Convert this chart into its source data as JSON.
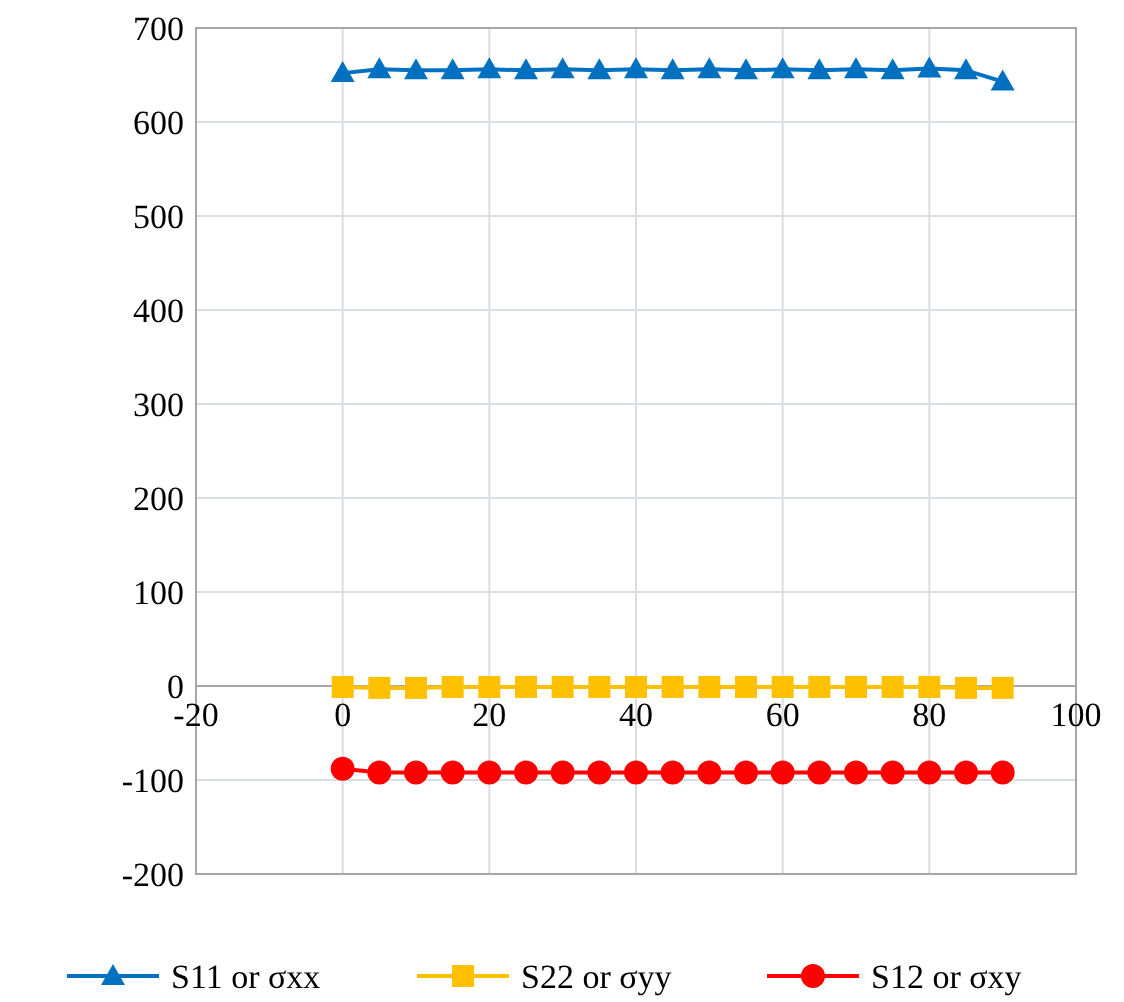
{
  "chart_data": {
    "type": "line",
    "x": [
      0,
      5,
      10,
      15,
      20,
      25,
      30,
      35,
      40,
      45,
      50,
      55,
      60,
      65,
      70,
      75,
      80,
      85,
      90
    ],
    "xlim": [
      -20,
      100
    ],
    "xticks": [
      -20,
      0,
      20,
      40,
      60,
      80,
      100
    ],
    "ylim": [
      -200,
      700
    ],
    "yticks": [
      -200,
      -100,
      0,
      100,
      200,
      300,
      400,
      500,
      600,
      700
    ],
    "grid": true,
    "legend": "bottom",
    "series": [
      {
        "name": "S11 or σxx",
        "color": "#0070c0",
        "marker": "triangle",
        "values": [
          652,
          656,
          655,
          655,
          656,
          655,
          656,
          655,
          656,
          655,
          656,
          655,
          656,
          655,
          656,
          655,
          657,
          655,
          643
        ]
      },
      {
        "name": "S22 or σyy",
        "color": "#ffc000",
        "marker": "square",
        "values": [
          -1,
          -2,
          -2,
          -1,
          -1,
          -1,
          -1,
          -1,
          -1,
          -1,
          -1,
          -1,
          -1,
          -1,
          -1,
          -1,
          -1,
          -2,
          -2
        ]
      },
      {
        "name": "S12 or σxy",
        "color": "#ff0000",
        "marker": "circle",
        "values": [
          -88,
          -92,
          -92,
          -92,
          -92,
          -92,
          -92,
          -92,
          -92,
          -92,
          -92,
          -92,
          -92,
          -92,
          -92,
          -92,
          -92,
          -92,
          -92
        ]
      }
    ]
  }
}
